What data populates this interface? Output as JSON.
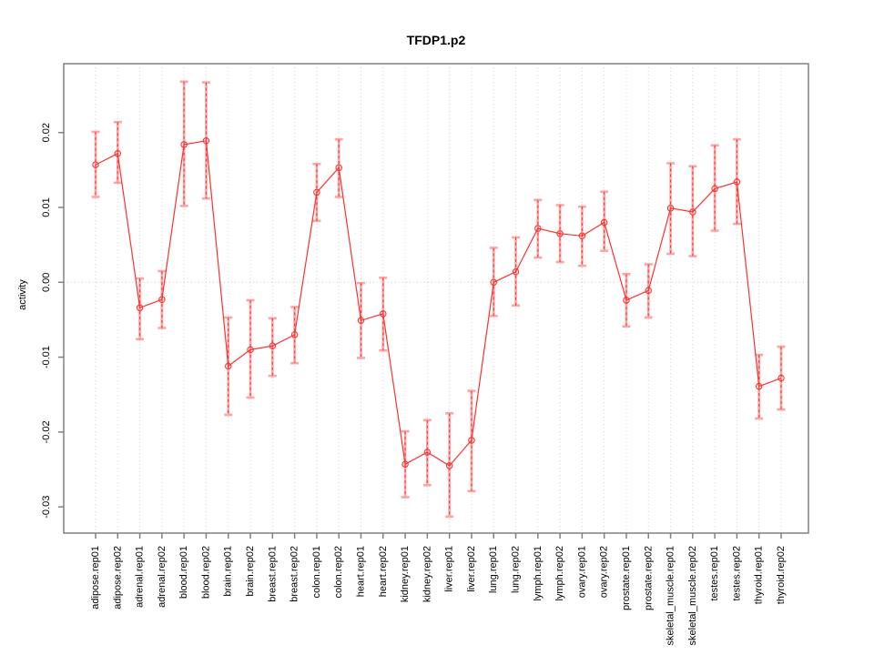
{
  "page": {
    "kind": "R statistical plot"
  },
  "chart_data": {
    "type": "line",
    "title": "TFDP1.p2",
    "xlabel": "",
    "ylabel": "activity",
    "legend": "none",
    "grid": "vertical dotted gridline at every category; horizontal dotted line at y=0",
    "categories": [
      "adipose.rep01",
      "adipose.rep02",
      "adrenal.rep01",
      "adrenal.rep02",
      "blood.rep01",
      "blood.rep02",
      "brain.rep01",
      "brain.rep02",
      "breast.rep01",
      "breast.rep02",
      "colon.rep01",
      "colon.rep02",
      "heart.rep01",
      "heart.rep02",
      "kidney.rep01",
      "kidney.rep02",
      "liver.rep01",
      "liver.rep02",
      "lung.rep01",
      "lung.rep02",
      "lymph.rep01",
      "lymph.rep02",
      "ovary.rep01",
      "ovary.rep02",
      "prostate.rep01",
      "prostate.rep02",
      "skeletal_muscle.rep01",
      "skeletal_muscle.rep02",
      "testes.rep01",
      "testes.rep02",
      "thyroid.rep01",
      "thyroid.rep02"
    ],
    "series": [
      {
        "name": "activity",
        "marker": "open-circle",
        "values": [
          0.0157,
          0.0172,
          -0.0034,
          -0.0023,
          0.0184,
          0.0189,
          -0.0112,
          -0.009,
          -0.0085,
          -0.007,
          0.012,
          0.0153,
          -0.0051,
          -0.0042,
          -0.0243,
          -0.0227,
          -0.0245,
          -0.0211,
          0.0,
          0.0014,
          0.0072,
          0.0065,
          0.0062,
          0.008,
          -0.0024,
          -0.0011,
          0.0099,
          0.0094,
          0.0125,
          0.0134,
          -0.0139,
          -0.0128
        ],
        "ci_low": [
          0.0114,
          0.0133,
          -0.0076,
          -0.0061,
          0.0102,
          0.0112,
          -0.0177,
          -0.0154,
          -0.0125,
          -0.0108,
          0.0082,
          0.0114,
          -0.0101,
          -0.0091,
          -0.0287,
          -0.0271,
          -0.0313,
          -0.0279,
          -0.0045,
          -0.0031,
          0.0033,
          0.0027,
          0.0022,
          0.0042,
          -0.0059,
          -0.0047,
          0.0038,
          0.0035,
          0.0069,
          0.0078,
          -0.0182,
          -0.017
        ],
        "ci_high": [
          0.0201,
          0.0214,
          0.0005,
          0.0015,
          0.0268,
          0.0267,
          -0.0047,
          -0.0024,
          -0.0048,
          -0.0033,
          0.0158,
          0.0191,
          -0.0001,
          0.0006,
          -0.0199,
          -0.0184,
          -0.0175,
          -0.0145,
          0.0046,
          0.006,
          0.011,
          0.0103,
          0.0101,
          0.0121,
          0.0011,
          0.0024,
          0.0159,
          0.0155,
          0.0183,
          0.0191,
          -0.0097,
          -0.0086
        ]
      }
    ],
    "yticks": {
      "values": [
        -0.03,
        -0.02,
        -0.01,
        0,
        0.01,
        0.02
      ],
      "labels": [
        "-0.03",
        "-0.02",
        "-0.01",
        "0.00",
        "0.01",
        "0.02"
      ]
    },
    "ylim": [
      -0.0335,
      0.0292
    ],
    "zero_line": 0,
    "colors": {
      "line": "#ff3030",
      "point": "#ff3030",
      "stem": "#ff3030",
      "error_bar": "#ffa3a3",
      "grid": "#d2d2d2",
      "zero": "#c8c8c8",
      "frame": "#808080",
      "tick": "#808080",
      "text": "#000000"
    }
  }
}
